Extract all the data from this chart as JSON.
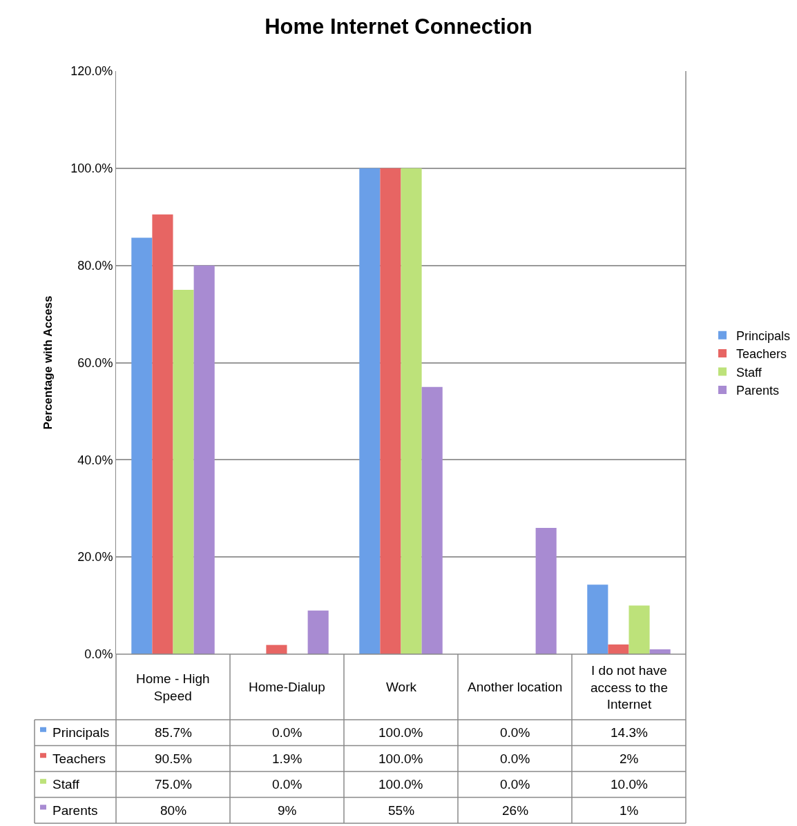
{
  "chart_data": {
    "type": "bar",
    "title": "Home Internet Connection",
    "ylabel": "Percentage with Access",
    "categories": [
      "Home - High Speed",
      "Home-Dialup",
      "Work",
      "Another location",
      "I do not have access to the Internet"
    ],
    "series": [
      {
        "name": "Principals",
        "color": "#6a9fe8",
        "values": [
          85.7,
          0.0,
          100.0,
          0.0,
          14.3
        ],
        "value_labels": [
          "85.7%",
          "0.0%",
          "100.0%",
          "0.0%",
          "14.3%"
        ]
      },
      {
        "name": "Teachers",
        "color": "#e76563",
        "values": [
          90.5,
          1.9,
          100.0,
          0.0,
          2
        ],
        "value_labels": [
          "90.5%",
          "1.9%",
          "100.0%",
          "0.0%",
          "2%"
        ]
      },
      {
        "name": "Staff",
        "color": "#bde27a",
        "values": [
          75.0,
          0.0,
          100.0,
          0.0,
          10.0
        ],
        "value_labels": [
          "75.0%",
          "0.0%",
          "100.0%",
          "0.0%",
          "10.0%"
        ]
      },
      {
        "name": "Parents",
        "color": "#a88bd2",
        "values": [
          80,
          9,
          55,
          26,
          1
        ],
        "value_labels": [
          "80%",
          "9%",
          "55%",
          "26%",
          "1%"
        ]
      }
    ],
    "ylim": [
      0,
      120
    ],
    "yticks": [
      {
        "value": 0,
        "label": "0.0%"
      },
      {
        "value": 20,
        "label": "20.0%"
      },
      {
        "value": 40,
        "label": "40.0%"
      },
      {
        "value": 60,
        "label": "60.0%"
      },
      {
        "value": 80,
        "label": "80.0%"
      },
      {
        "value": 100,
        "label": "100.0%"
      },
      {
        "value": 120,
        "label": "120.0%"
      }
    ],
    "grid": "y",
    "legend": "right"
  }
}
